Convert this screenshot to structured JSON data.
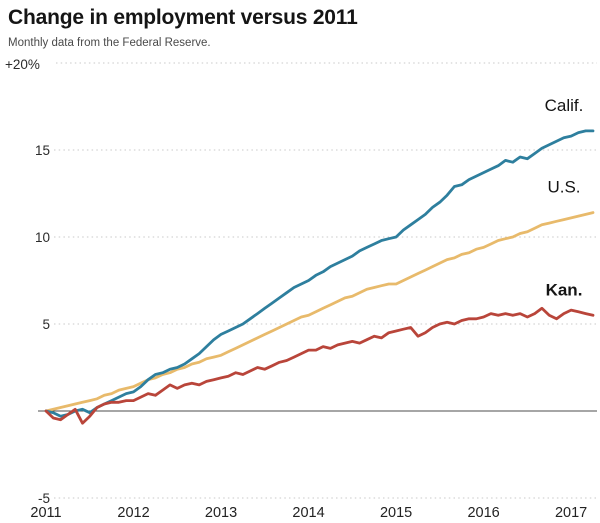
{
  "header": {
    "title": "Change in employment versus 2011",
    "subtitle": "Monthly data from the Federal Reserve."
  },
  "chart_data": {
    "type": "line",
    "title": "Change in employment versus 2011",
    "subtitle": "Monthly data from the Federal Reserve.",
    "x_unit": "month",
    "x_range": [
      "2011-01",
      "2017-04"
    ],
    "x_tick_labels": [
      "2011",
      "2012",
      "2013",
      "2014",
      "2015",
      "2016",
      "2017"
    ],
    "y_ticks": [
      {
        "label": "+20%",
        "value": 20
      },
      {
        "label": "15",
        "value": 15
      },
      {
        "label": "10",
        "value": 10
      },
      {
        "label": "5",
        "value": 5
      },
      {
        "label": "-5",
        "value": -5
      }
    ],
    "ylim": [
      -5,
      20
    ],
    "baseline_value": 0,
    "grid": "dotted-horizontal",
    "grid_color": "#c9c9c9",
    "baseline_color": "#4d4d4d",
    "legend_position": "inline-end-labels",
    "series": [
      {
        "name": "Calif.",
        "color": "#2e7f9e",
        "bold_label": false,
        "values": [
          0.0,
          -0.1,
          -0.3,
          -0.2,
          0.0,
          0.1,
          -0.1,
          0.2,
          0.4,
          0.6,
          0.8,
          1.0,
          1.1,
          1.4,
          1.8,
          2.1,
          2.2,
          2.4,
          2.5,
          2.7,
          3.0,
          3.3,
          3.7,
          4.1,
          4.4,
          4.6,
          4.8,
          5.0,
          5.3,
          5.6,
          5.9,
          6.2,
          6.5,
          6.8,
          7.1,
          7.3,
          7.5,
          7.8,
          8.0,
          8.3,
          8.5,
          8.7,
          8.9,
          9.2,
          9.4,
          9.6,
          9.8,
          9.9,
          10.0,
          10.4,
          10.7,
          11.0,
          11.3,
          11.7,
          12.0,
          12.4,
          12.9,
          13.0,
          13.3,
          13.5,
          13.7,
          13.9,
          14.1,
          14.4,
          14.3,
          14.6,
          14.5,
          14.8,
          15.1,
          15.3,
          15.5,
          15.7,
          15.8,
          16.0,
          16.1,
          16.1
        ]
      },
      {
        "name": "U.S.",
        "color": "#e8ba6b",
        "bold_label": false,
        "values": [
          0.0,
          0.1,
          0.2,
          0.3,
          0.4,
          0.5,
          0.6,
          0.7,
          0.9,
          1.0,
          1.2,
          1.3,
          1.4,
          1.6,
          1.8,
          1.9,
          2.1,
          2.2,
          2.4,
          2.5,
          2.7,
          2.8,
          3.0,
          3.1,
          3.2,
          3.4,
          3.6,
          3.8,
          4.0,
          4.2,
          4.4,
          4.6,
          4.8,
          5.0,
          5.2,
          5.4,
          5.5,
          5.7,
          5.9,
          6.1,
          6.3,
          6.5,
          6.6,
          6.8,
          7.0,
          7.1,
          7.2,
          7.3,
          7.3,
          7.5,
          7.7,
          7.9,
          8.1,
          8.3,
          8.5,
          8.7,
          8.8,
          9.0,
          9.1,
          9.3,
          9.4,
          9.6,
          9.8,
          9.9,
          10.0,
          10.2,
          10.3,
          10.5,
          10.7,
          10.8,
          10.9,
          11.0,
          11.1,
          11.2,
          11.3,
          11.4
        ]
      },
      {
        "name": "Kan.",
        "color": "#b9453a",
        "bold_label": true,
        "values": [
          0.0,
          -0.4,
          -0.5,
          -0.2,
          0.1,
          -0.7,
          -0.3,
          0.2,
          0.4,
          0.5,
          0.5,
          0.6,
          0.6,
          0.8,
          1.0,
          0.9,
          1.2,
          1.5,
          1.3,
          1.5,
          1.6,
          1.5,
          1.7,
          1.8,
          1.9,
          2.0,
          2.2,
          2.1,
          2.3,
          2.5,
          2.4,
          2.6,
          2.8,
          2.9,
          3.1,
          3.3,
          3.5,
          3.5,
          3.7,
          3.6,
          3.8,
          3.9,
          4.0,
          3.9,
          4.1,
          4.3,
          4.2,
          4.5,
          4.6,
          4.7,
          4.8,
          4.3,
          4.5,
          4.8,
          5.0,
          5.1,
          5.0,
          5.2,
          5.3,
          5.3,
          5.4,
          5.6,
          5.5,
          5.6,
          5.5,
          5.6,
          5.4,
          5.6,
          5.9,
          5.5,
          5.3,
          5.6,
          5.8,
          5.7,
          5.6,
          5.5
        ]
      }
    ]
  }
}
